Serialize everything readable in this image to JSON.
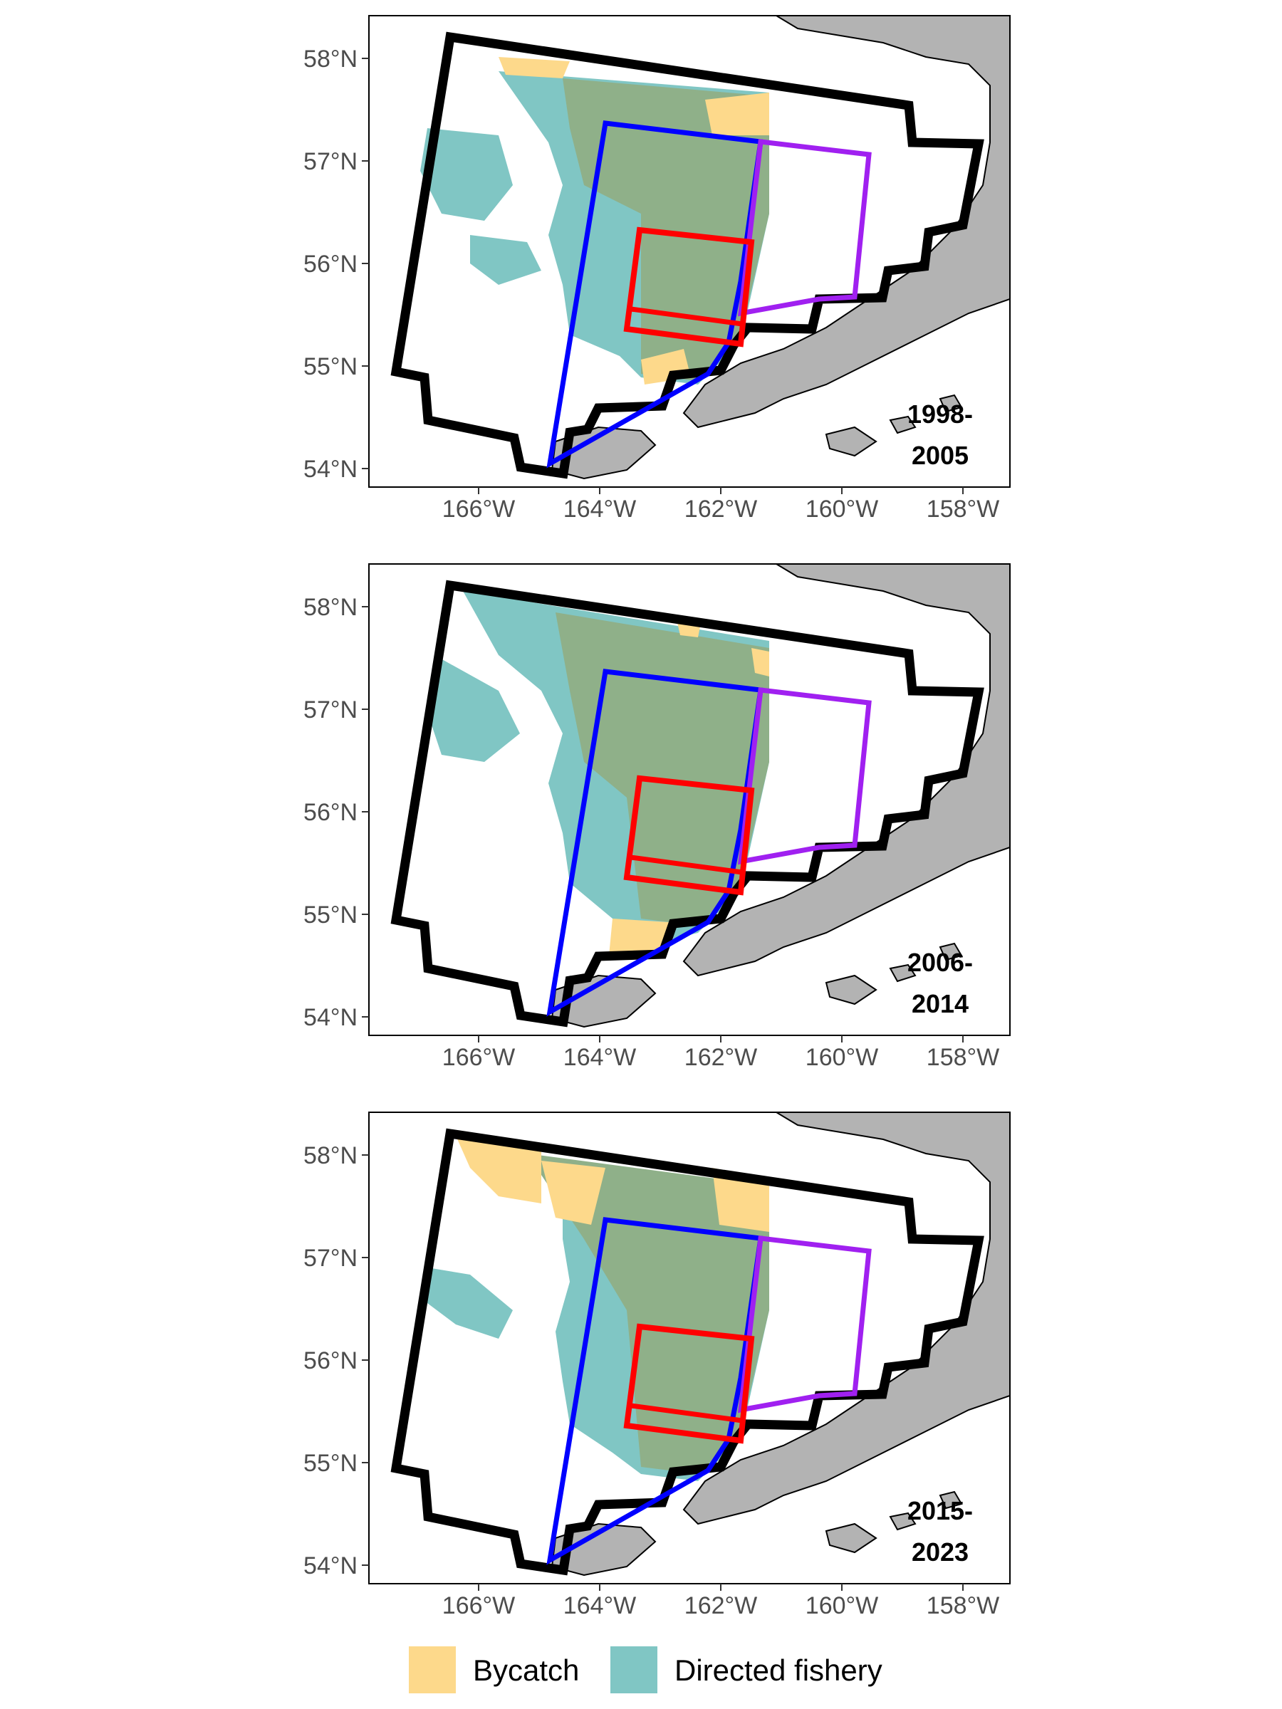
{
  "colors": {
    "bycatch": "#fdd98b",
    "directed": "#80c6c4",
    "overlap": "#8fb089",
    "land": "#b3b3b3",
    "boundary": "#000000",
    "blue_area": "#0000ff",
    "purple_area": "#a020f0",
    "red_area": "#ff0000",
    "tick_text": "#4d4d4d"
  },
  "axes": {
    "lon_labels": [
      "166°W",
      "164°W",
      "162°W",
      "160°W",
      "158°W"
    ],
    "lat_labels": [
      "58°N",
      "57°N",
      "56°N",
      "55°N",
      "54°N"
    ]
  },
  "panels": [
    {
      "period_line1": "1998-",
      "period_line2": "2005"
    },
    {
      "period_line1": "2006-",
      "period_line2": "2014"
    },
    {
      "period_line1": "2015-",
      "period_line2": "2023"
    }
  ],
  "legend": {
    "items": [
      {
        "label": "Bycatch",
        "color": "#fdd98b"
      },
      {
        "label": "Directed fishery",
        "color": "#80c6c4"
      }
    ]
  }
}
